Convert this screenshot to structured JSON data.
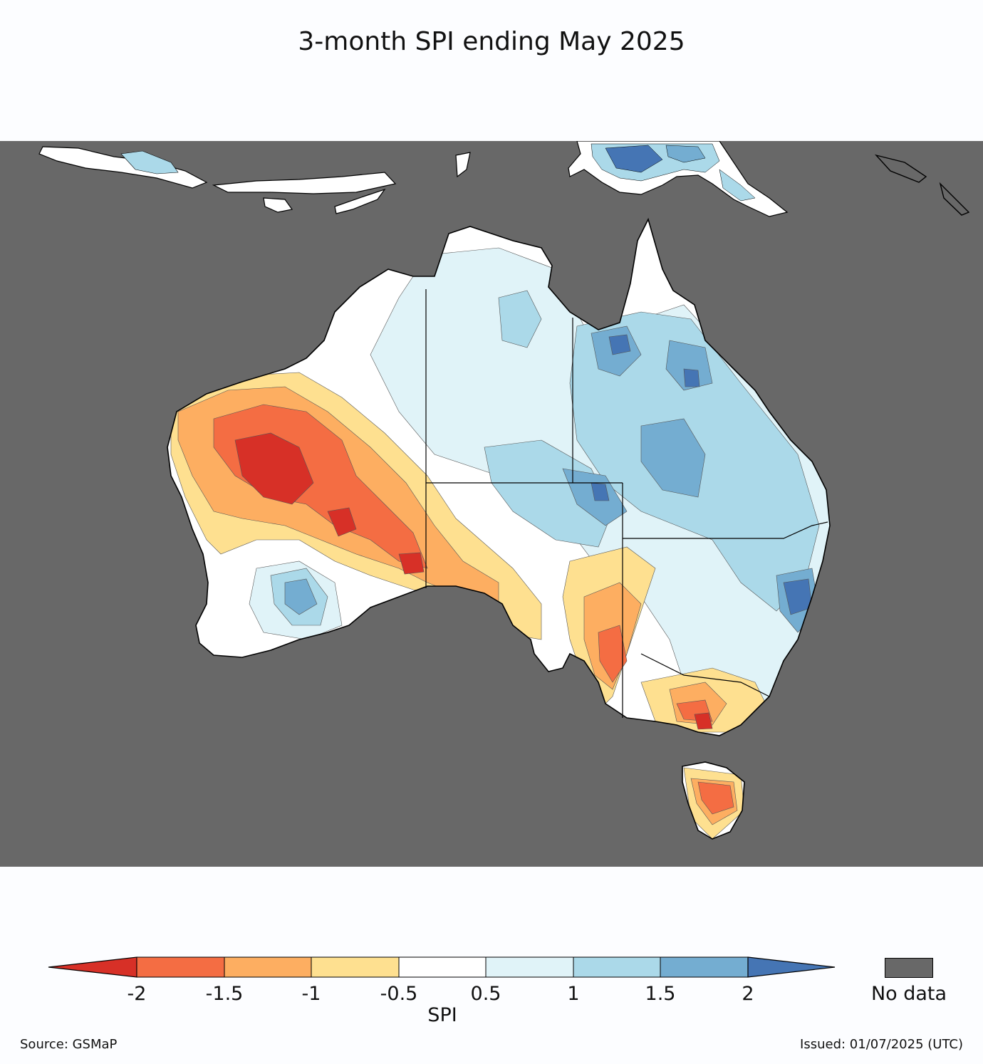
{
  "title": "3-month SPI ending May 2025",
  "legend": {
    "colorbar_label": "SPI",
    "ticks": [
      "-2",
      "-1.5",
      "-1",
      "-0.5",
      "0.5",
      "1",
      "1.5",
      "2"
    ],
    "bins": [
      {
        "range": "< -2",
        "color": "#d73027"
      },
      {
        "range": "-2 to -1.5",
        "color": "#f46d43"
      },
      {
        "range": "-1.5 to -1",
        "color": "#fdae61"
      },
      {
        "range": "-1 to -0.5",
        "color": "#fee090"
      },
      {
        "range": "-0.5 to 0.5",
        "color": "#ffffff"
      },
      {
        "range": "0.5 to 1",
        "color": "#e0f3f8"
      },
      {
        "range": "1 to 1.5",
        "color": "#abd9e9"
      },
      {
        "range": "1.5 to 2",
        "color": "#74add1"
      },
      {
        "range": "> 2",
        "color": "#4575b4"
      }
    ],
    "no_data_label": "No data",
    "no_data_color": "#686868"
  },
  "footer": {
    "source": "Source: GSMaP",
    "issued": "Issued: 01/07/2025 (UTC)"
  }
}
